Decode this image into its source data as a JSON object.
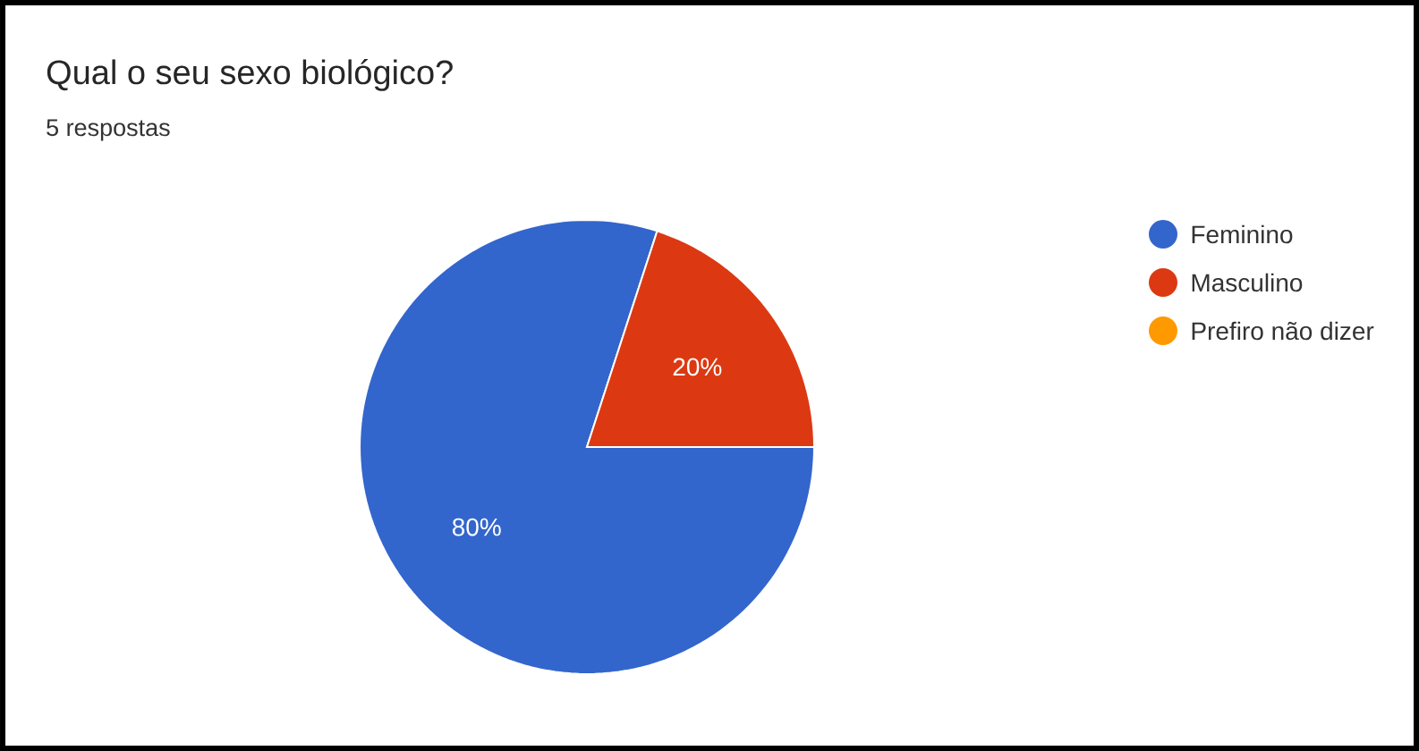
{
  "chart_data": {
    "type": "pie",
    "title": "Qual o seu sexo biológico?",
    "subtitle": "5 respostas",
    "categories": [
      "Feminino",
      "Masculino",
      "Prefiro não dizer"
    ],
    "values": [
      80,
      20,
      0
    ],
    "colors": [
      "#3366cc",
      "#dc3912",
      "#ff9900"
    ],
    "value_labels": [
      "80%",
      "20%",
      null
    ],
    "legend": "top right"
  }
}
